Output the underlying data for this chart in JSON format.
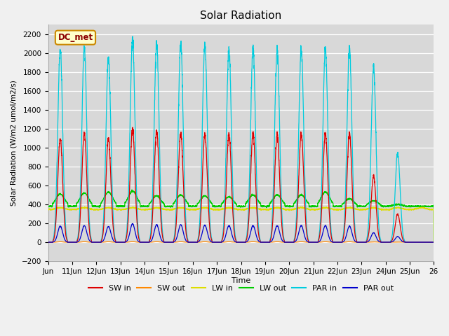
{
  "title": "Solar Radiation",
  "ylabel": "Solar Radiation (W/m2 umol/m2/s)",
  "xlabel": "Time",
  "ylim": [
    -200,
    2300
  ],
  "yticks": [
    -200,
    0,
    200,
    400,
    600,
    800,
    1000,
    1200,
    1400,
    1600,
    1800,
    2000,
    2200
  ],
  "xlim_start": 10,
  "xlim_end": 26,
  "xtick_labels": [
    "Jun",
    "11Jun",
    "12Jun",
    "13Jun",
    "14Jun",
    "15Jun",
    "16Jun",
    "17Jun",
    "18Jun",
    "19Jun",
    "20Jun",
    "21Jun",
    "22Jun",
    "23Jun",
    "24Jun",
    "25Jun",
    "26"
  ],
  "xtick_positions": [
    10,
    11,
    12,
    13,
    14,
    15,
    16,
    17,
    18,
    19,
    20,
    21,
    22,
    23,
    24,
    25,
    26
  ],
  "legend_label": "DC_met",
  "series_colors": {
    "SW_in": "#dd0000",
    "SW_out": "#ff8800",
    "LW_in": "#dddd00",
    "LW_out": "#00cc00",
    "PAR_in": "#00ccdd",
    "PAR_out": "#0000cc"
  },
  "legend_entries": [
    "SW in",
    "SW out",
    "LW in",
    "LW out",
    "PAR in",
    "PAR out"
  ],
  "legend_colors": [
    "#dd0000",
    "#ff8800",
    "#dddd00",
    "#00cc00",
    "#00ccdd",
    "#0000cc"
  ],
  "plot_bg": "#d8d8d8",
  "fig_bg": "#f0f0f0"
}
